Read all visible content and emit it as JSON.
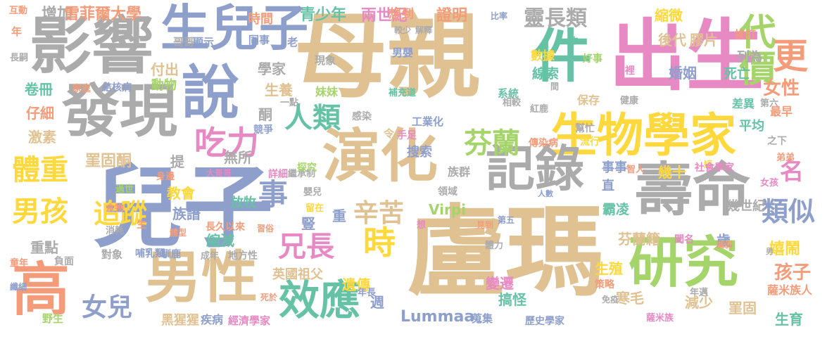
{
  "palette": {
    "orange": "#f49c7a",
    "tan": "#e0c192",
    "gray": "#ababab",
    "periwinkle": "#8e9fcb",
    "green": "#a5d46a",
    "teal": "#66c2a5",
    "yellow": "#ffd83d",
    "pink": "#e78ac3"
  },
  "words": [
    {
      "text": "母親",
      "color": "tan"
    },
    {
      "text": "盧瑪",
      "color": "tan"
    },
    {
      "text": "出生",
      "color": "pink"
    },
    {
      "text": "兒子",
      "color": "periwinkle"
    },
    {
      "text": "影響",
      "color": "gray"
    },
    {
      "text": "說",
      "color": "periwinkle"
    },
    {
      "text": "發現",
      "color": "gray"
    },
    {
      "text": "生兒子",
      "color": "periwinkle"
    },
    {
      "text": "件",
      "color": "teal"
    },
    {
      "text": "生物學家",
      "color": "yellow"
    },
    {
      "text": "壽命",
      "color": "gray"
    },
    {
      "text": "記錄",
      "color": "gray"
    },
    {
      "text": "演化",
      "color": "tan"
    },
    {
      "text": "研究",
      "color": "green"
    },
    {
      "text": "男性",
      "color": "tan"
    },
    {
      "text": "高",
      "color": "orange"
    },
    {
      "text": "效應",
      "color": "teal"
    },
    {
      "text": "代價",
      "color": "green"
    },
    {
      "text": "更",
      "color": "orange"
    },
    {
      "text": "吃力",
      "color": "pink"
    },
    {
      "text": "人類",
      "color": "teal"
    },
    {
      "text": "芬蘭",
      "color": "green"
    },
    {
      "text": "體重",
      "color": "yellow"
    },
    {
      "text": "男孩",
      "color": "yellow"
    },
    {
      "text": "事",
      "color": "periwinkle"
    },
    {
      "text": "時",
      "color": "yellow"
    },
    {
      "text": "兄長",
      "color": "pink"
    },
    {
      "text": "辛苦",
      "color": "tan"
    },
    {
      "text": "追蹤",
      "color": "yellow"
    },
    {
      "text": "女兒",
      "color": "periwinkle"
    },
    {
      "text": "類似",
      "color": "periwinkle"
    },
    {
      "text": "名",
      "color": "pink"
    },
    {
      "text": "女性",
      "color": "orange"
    },
    {
      "text": "靈長類",
      "color": "gray"
    },
    {
      "text": "孩子",
      "color": "orange"
    },
    {
      "text": "增加",
      "color": "gray"
    },
    {
      "text": "雪菲爾大學",
      "color": "orange"
    },
    {
      "text": "青少年",
      "color": "teal"
    },
    {
      "text": "兩世紀",
      "color": "pink"
    },
    {
      "text": "證明",
      "color": "orange"
    },
    {
      "text": "縮微",
      "color": "yellow"
    },
    {
      "text": "後代",
      "color": "tan"
    },
    {
      "text": "膠片",
      "color": "tan"
    },
    {
      "text": "時間",
      "color": "orange"
    },
    {
      "text": "想到",
      "color": "orange"
    },
    {
      "text": "比率",
      "color": "periwinkle"
    },
    {
      "text": "互動",
      "color": "orange"
    },
    {
      "text": "年",
      "color": "orange"
    },
    {
      "text": "哥哥",
      "color": "gray"
    },
    {
      "text": "顯示",
      "color": "periwinkle"
    },
    {
      "text": "同事",
      "color": "periwinkle"
    },
    {
      "text": "老",
      "color": "periwinkle"
    },
    {
      "text": "較少",
      "color": "gray"
    },
    {
      "text": "解釋",
      "color": "gray"
    },
    {
      "text": "挨打",
      "color": "orange"
    },
    {
      "text": "中",
      "color": "teal"
    },
    {
      "text": "長嗣",
      "color": "gray"
    },
    {
      "text": "學家",
      "color": "gray"
    },
    {
      "text": "現象",
      "color": "gray"
    },
    {
      "text": "男嬰",
      "color": "periwinkle"
    },
    {
      "text": "數據",
      "color": "yellow"
    },
    {
      "text": "好事",
      "color": "green"
    },
    {
      "text": "列為",
      "color": "gray"
    },
    {
      "text": "付出",
      "color": "tan"
    },
    {
      "text": "線索",
      "color": "teal"
    },
    {
      "text": "死亡",
      "color": "teal"
    },
    {
      "text": "卷冊",
      "color": "teal"
    },
    {
      "text": "家庭",
      "color": "orange"
    },
    {
      "text": "結核病",
      "color": "periwinkle"
    },
    {
      "text": "動物",
      "color": "green"
    },
    {
      "text": "生養",
      "color": "tan"
    },
    {
      "text": "妹妹",
      "color": "green"
    },
    {
      "text": "補充道",
      "color": "teal"
    },
    {
      "text": "系統",
      "color": "teal"
    },
    {
      "text": "間",
      "color": "gray"
    },
    {
      "text": "婚姻",
      "color": "periwinkle"
    },
    {
      "text": "裡",
      "color": "pink"
    },
    {
      "text": "仔細",
      "color": "orange"
    },
    {
      "text": "酮",
      "color": "gray"
    },
    {
      "text": "一點",
      "color": "gray"
    },
    {
      "text": "相較",
      "color": "gray"
    },
    {
      "text": "保存",
      "color": "tan"
    },
    {
      "text": "健康",
      "color": "gray"
    },
    {
      "text": "差異",
      "color": "teal"
    },
    {
      "text": "第六",
      "color": "gray"
    },
    {
      "text": "紅鹿",
      "color": "gray"
    },
    {
      "text": "最早",
      "color": "orange"
    },
    {
      "text": "激素",
      "color": "tan"
    },
    {
      "text": "競爭",
      "color": "periwinkle"
    },
    {
      "text": "感染",
      "color": "gray"
    },
    {
      "text": "工業化",
      "color": "periwinkle"
    },
    {
      "text": "手足",
      "color": "pink"
    },
    {
      "text": "令",
      "color": "tan"
    },
    {
      "text": "搜索",
      "color": "periwinkle"
    },
    {
      "text": "幫忙",
      "color": "gray"
    },
    {
      "text": "平均",
      "color": "teal"
    },
    {
      "text": "傳染病",
      "color": "orange"
    },
    {
      "text": "流行",
      "color": "yellow"
    },
    {
      "text": "之下",
      "color": "gray"
    },
    {
      "text": "罣固酮",
      "color": "tan"
    },
    {
      "text": "提",
      "color": "gray"
    },
    {
      "text": "無所",
      "color": "gray"
    },
    {
      "text": "事事",
      "color": "periwinkle"
    },
    {
      "text": "幾十",
      "color": "yellow"
    },
    {
      "text": "智人",
      "color": "orange"
    },
    {
      "text": "短",
      "color": "yellow"
    },
    {
      "text": "社會學家",
      "color": "pink"
    },
    {
      "text": "弟弟",
      "color": "orange"
    },
    {
      "text": "身邊",
      "color": "orange"
    },
    {
      "text": "大哥哥",
      "color": "pink"
    },
    {
      "text": "詳細",
      "color": "pink"
    },
    {
      "text": "繼承制",
      "color": "gray"
    },
    {
      "text": "探究",
      "color": "green"
    },
    {
      "text": "族群",
      "color": "gray"
    },
    {
      "text": "直",
      "color": "periwinkle"
    },
    {
      "text": "女孩",
      "color": "pink"
    },
    {
      "text": "教會",
      "color": "yellow"
    },
    {
      "text": "過世",
      "color": "green"
    },
    {
      "text": "嬰兒",
      "color": "gray"
    },
    {
      "text": "人數",
      "color": "periwinkle"
    },
    {
      "text": "領域",
      "color": "gray"
    },
    {
      "text": "幾世紀",
      "color": "gray"
    },
    {
      "text": "放牧",
      "color": "teal"
    },
    {
      "text": "食物",
      "color": "orange"
    },
    {
      "text": "霸凌",
      "color": "teal"
    },
    {
      "text": "族譜",
      "color": "periwinkle"
    },
    {
      "text": "留在",
      "color": "yellow"
    },
    {
      "text": "Virpi",
      "color": "green"
    },
    {
      "text": "重",
      "color": "periwinkle"
    },
    {
      "text": "生",
      "color": "orange"
    },
    {
      "text": "長久以來",
      "color": "orange"
    },
    {
      "text": "豎",
      "color": "periwinkle"
    },
    {
      "text": "想",
      "color": "pink"
    },
    {
      "text": "見到",
      "color": "orange"
    },
    {
      "text": "第五",
      "color": "periwinkle"
    },
    {
      "text": "體型",
      "color": "orange"
    },
    {
      "text": "習俗",
      "color": "orange"
    },
    {
      "text": "縮減",
      "color": "teal"
    },
    {
      "text": "消耗",
      "color": "gray"
    },
    {
      "text": "芬蘭籍",
      "color": "tan"
    },
    {
      "text": "聞名",
      "color": "pink"
    },
    {
      "text": "歲",
      "color": "periwinkle"
    },
    {
      "text": "減弱",
      "color": "orange"
    },
    {
      "text": "重點",
      "color": "gray"
    },
    {
      "text": "體力",
      "color": "gray"
    },
    {
      "text": "嬉鬧",
      "color": "yellow"
    },
    {
      "text": "對象",
      "color": "gray"
    },
    {
      "text": "哺乳類",
      "color": "periwinkle"
    },
    {
      "text": "馴鹿",
      "color": "periwinkle"
    },
    {
      "text": "地方性",
      "color": "gray"
    },
    {
      "text": "成年",
      "color": "gray"
    },
    {
      "text": "男",
      "color": "gray"
    },
    {
      "text": "童年",
      "color": "orange"
    },
    {
      "text": "負面",
      "color": "gray"
    },
    {
      "text": "英國祖父",
      "color": "tan"
    },
    {
      "text": "生殖",
      "color": "yellow"
    },
    {
      "text": "遺傳",
      "color": "yellow"
    },
    {
      "text": "變遷",
      "color": "pink"
    },
    {
      "text": "策略",
      "color": "orange"
    },
    {
      "text": "年邁",
      "color": "gray"
    },
    {
      "text": "纖細",
      "color": "periwinkle"
    },
    {
      "text": "死於",
      "color": "orange"
    },
    {
      "text": "年長",
      "color": "periwinkle"
    },
    {
      "text": "週",
      "color": "periwinkle"
    },
    {
      "text": "搞怪",
      "color": "teal"
    },
    {
      "text": "寒毛",
      "color": "tan"
    },
    {
      "text": "減少",
      "color": "tan"
    },
    {
      "text": "罣固",
      "color": "tan"
    },
    {
      "text": "薩米族人",
      "color": "orange"
    },
    {
      "text": "免疫",
      "color": "gray"
    },
    {
      "text": "生育",
      "color": "teal"
    },
    {
      "text": "野生",
      "color": "green"
    },
    {
      "text": "黑猩猩",
      "color": "tan"
    },
    {
      "text": "疾病",
      "color": "periwinkle"
    },
    {
      "text": "經濟學家",
      "color": "pink"
    },
    {
      "text": "Lummaa",
      "color": "periwinkle"
    },
    {
      "text": "蒐集",
      "color": "periwinkle"
    },
    {
      "text": "歷史學家",
      "color": "periwinkle"
    },
    {
      "text": "薩米族",
      "color": "pink"
    }
  ]
}
